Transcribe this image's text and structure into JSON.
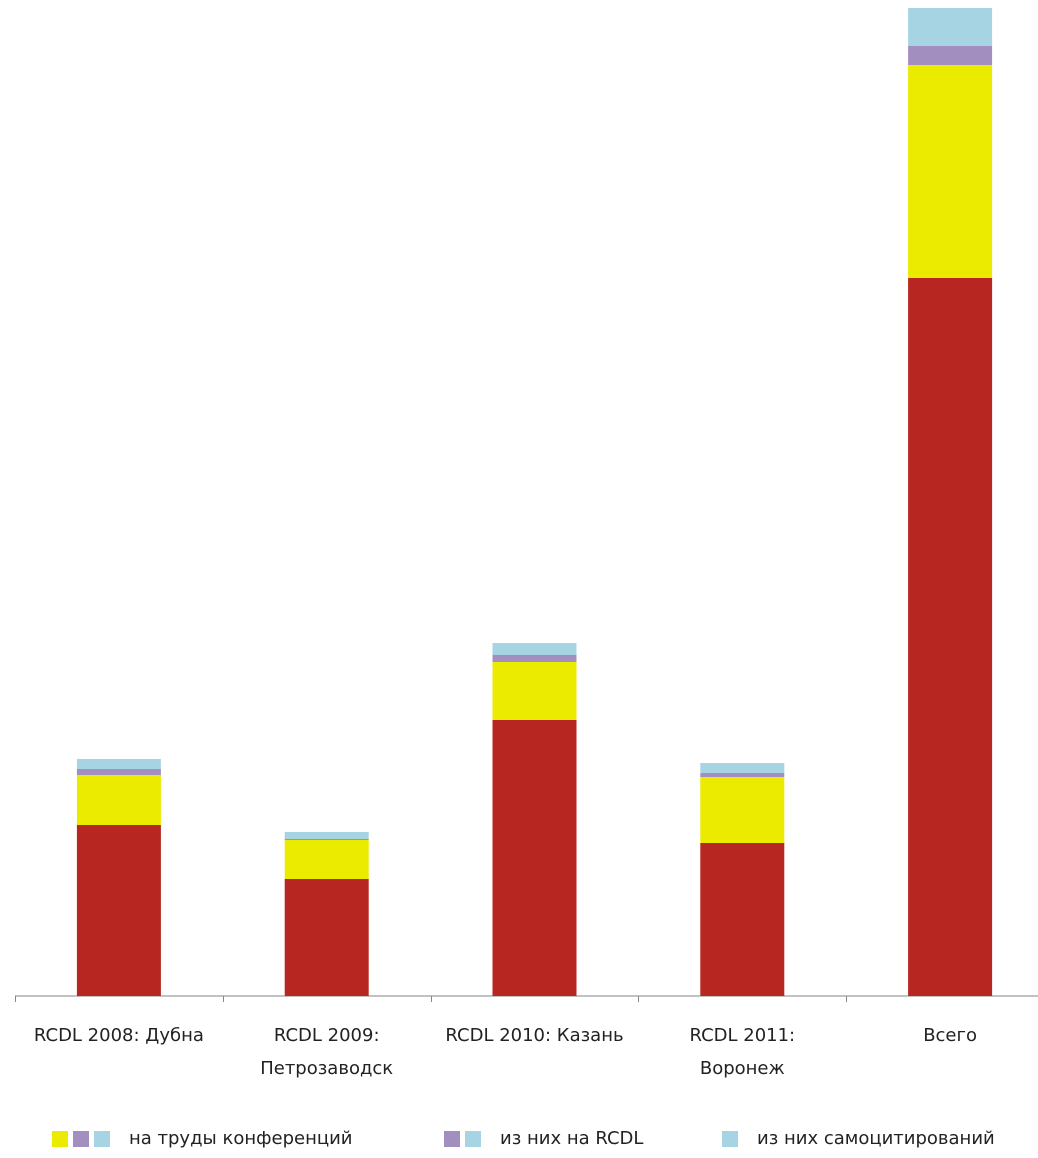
{
  "chart_data": {
    "type": "bar",
    "stacked": true,
    "categories": [
      [
        "RCDL 2008: Дубна"
      ],
      [
        "RCDL 2009:",
        "Петрозаводск"
      ],
      [
        "RCDL 2010: Казань"
      ],
      [
        "RCDL 2011:",
        "Воронеж"
      ],
      [
        "Всего"
      ]
    ],
    "series": [
      {
        "name": "",
        "color": "#b72620",
        "values": [
          171,
          117,
          276,
          153,
          718
        ]
      },
      {
        "name": "на труды конференций",
        "color": "#ebeb00",
        "values": [
          50,
          39,
          58,
          66,
          213
        ]
      },
      {
        "name": "из них на RCDL",
        "color": "#a38fbf",
        "values": [
          6,
          1,
          7,
          4,
          19
        ]
      },
      {
        "name": "из них  самоцитирований",
        "color": "#a6d4e3",
        "values": [
          10,
          7,
          12,
          10,
          38
        ]
      }
    ],
    "ylim": [
      0,
      988
    ],
    "grid": false,
    "legend_position": "bottom",
    "legend": [
      {
        "label": "на труды конференций",
        "swatches": [
          "#ebeb00",
          "#a38fbf",
          "#a6d4e3"
        ]
      },
      {
        "label": "из них на RCDL",
        "swatches": [
          "#a38fbf",
          "#a6d4e3"
        ]
      },
      {
        "label": "из них  самоцитирований",
        "swatches": [
          "#a6d4e3"
        ]
      }
    ]
  }
}
